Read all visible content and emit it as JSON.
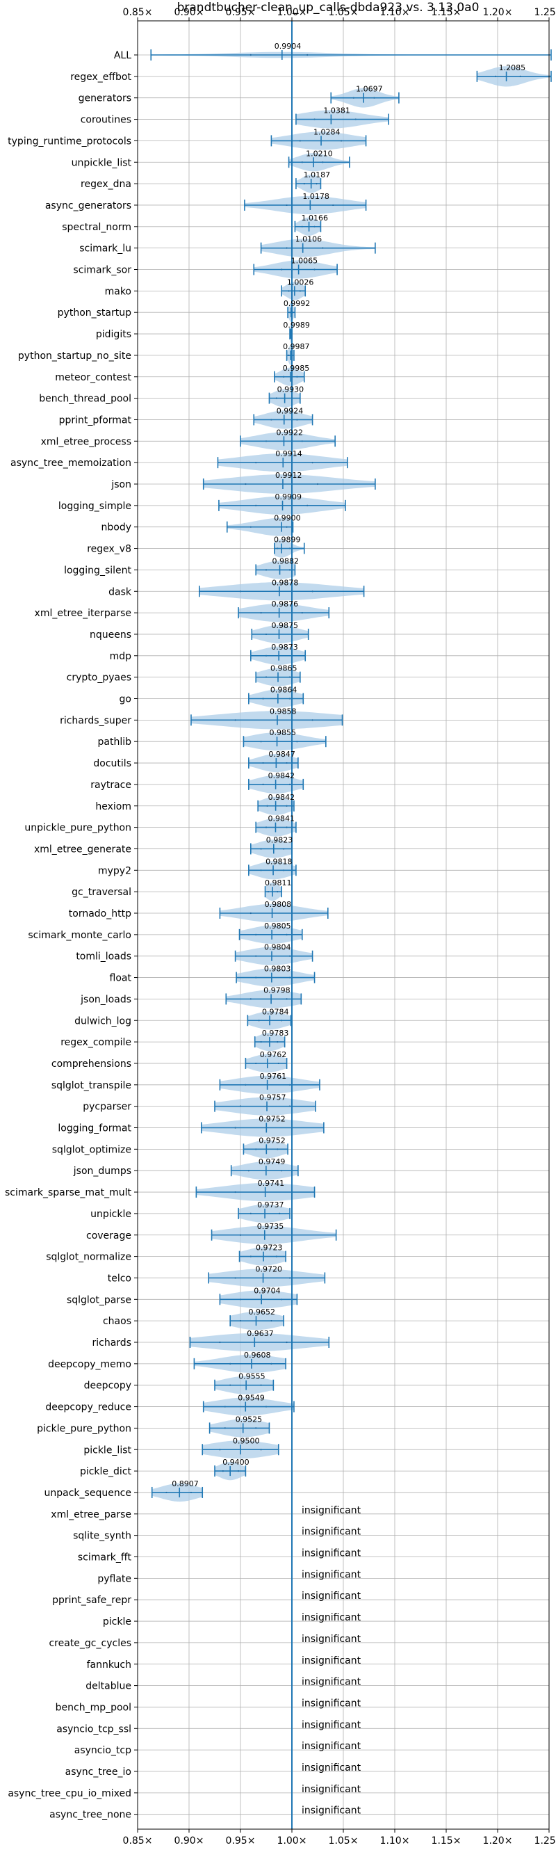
{
  "chart_data": {
    "type": "violin",
    "title": "brandtbucher-clean_up_calls-dbda923 vs. 3.13.0a0",
    "xlim": [
      0.85,
      1.25
    ],
    "xticks": [
      0.85,
      0.9,
      0.95,
      1.0,
      1.05,
      1.1,
      1.15,
      1.2,
      1.25
    ],
    "xtick_labels": [
      "0.85×",
      "0.90×",
      "0.95×",
      "1.00×",
      "1.05×",
      "1.10×",
      "1.15×",
      "1.20×",
      "1.25×"
    ],
    "reference_line": 1.0,
    "grid": true,
    "colors": {
      "violin": "#aecde8",
      "line": "#1f77b4",
      "grid": "#b0b0b0"
    },
    "insignificant_label": "insignificant",
    "benchmarks": [
      {
        "name": "ALL",
        "value": 0.9904,
        "label": "0.9904",
        "min": 0.863,
        "max": 1.252,
        "p25": 0.96,
        "p75": 1.015,
        "width": 0.28
      },
      {
        "name": "regex_effbot",
        "value": 1.2085,
        "label": "1.2085",
        "min": 1.18,
        "max": 1.252,
        "p25": 1.198,
        "p75": 1.222,
        "width": 0.95
      },
      {
        "name": "generators",
        "value": 1.0697,
        "label": "1.0697",
        "min": 1.038,
        "max": 1.104,
        "p25": 1.06,
        "p75": 1.08,
        "width": 0.9
      },
      {
        "name": "coroutines",
        "value": 1.0381,
        "label": "1.0381",
        "min": 1.004,
        "max": 1.094,
        "p25": 1.022,
        "p75": 1.062,
        "width": 0.85
      },
      {
        "name": "typing_runtime_protocols",
        "value": 1.0284,
        "label": "1.0284",
        "min": 0.98,
        "max": 1.072,
        "p25": 1.008,
        "p75": 1.048,
        "width": 0.85
      },
      {
        "name": "unpickle_list",
        "value": 1.021,
        "label": "1.0210",
        "min": 0.997,
        "max": 1.056,
        "p25": 1.01,
        "p75": 1.03,
        "width": 0.85
      },
      {
        "name": "regex_dna",
        "value": 1.0187,
        "label": "1.0187",
        "min": 1.004,
        "max": 1.028,
        "p25": 1.012,
        "p75": 1.024,
        "width": 0.85
      },
      {
        "name": "async_generators",
        "value": 1.0178,
        "label": "1.0178",
        "min": 0.954,
        "max": 1.072,
        "p25": 0.995,
        "p75": 1.04,
        "width": 0.85
      },
      {
        "name": "spectral_norm",
        "value": 1.0166,
        "label": "1.0166",
        "min": 1.003,
        "max": 1.028,
        "p25": 1.01,
        "p75": 1.022,
        "width": 0.85
      },
      {
        "name": "scimark_lu",
        "value": 1.0106,
        "label": "1.0106",
        "min": 0.97,
        "max": 1.081,
        "p25": 0.995,
        "p75": 1.03,
        "width": 0.85
      },
      {
        "name": "scimark_sor",
        "value": 1.0065,
        "label": "1.0065",
        "min": 0.963,
        "max": 1.044,
        "p25": 0.99,
        "p75": 1.022,
        "width": 0.85
      },
      {
        "name": "mako",
        "value": 1.0026,
        "label": "1.0026",
        "min": 0.99,
        "max": 1.013,
        "p25": 0.997,
        "p75": 1.008,
        "width": 0.85
      },
      {
        "name": "python_startup",
        "value": 0.9992,
        "label": "0.9992",
        "min": 0.996,
        "max": 1.003,
        "p25": 0.998,
        "p75": 1.001,
        "width": 0.9
      },
      {
        "name": "pidigits",
        "value": 0.9989,
        "label": "0.9989",
        "min": 0.998,
        "max": 1.0,
        "p25": 0.9985,
        "p75": 0.9995,
        "width": 0.9
      },
      {
        "name": "python_startup_no_site",
        "value": 0.9987,
        "label": "0.9987",
        "min": 0.995,
        "max": 1.002,
        "p25": 0.997,
        "p75": 1.0,
        "width": 0.9
      },
      {
        "name": "meteor_contest",
        "value": 0.9985,
        "label": "0.9985",
        "min": 0.983,
        "max": 1.012,
        "p25": 0.992,
        "p75": 1.005,
        "width": 0.85
      },
      {
        "name": "bench_thread_pool",
        "value": 0.993,
        "label": "0.9930",
        "min": 0.978,
        "max": 1.008,
        "p25": 0.985,
        "p75": 1.0,
        "width": 0.85
      },
      {
        "name": "pprint_pformat",
        "value": 0.9924,
        "label": "0.9924",
        "min": 0.963,
        "max": 1.02,
        "p25": 0.98,
        "p75": 1.005,
        "width": 0.85
      },
      {
        "name": "xml_etree_process",
        "value": 0.9922,
        "label": "0.9922",
        "min": 0.95,
        "max": 1.042,
        "p25": 0.975,
        "p75": 1.01,
        "width": 0.85
      },
      {
        "name": "async_tree_memoization",
        "value": 0.9914,
        "label": "0.9914",
        "min": 0.928,
        "max": 1.054,
        "p25": 0.965,
        "p75": 1.02,
        "width": 0.85
      },
      {
        "name": "json",
        "value": 0.9912,
        "label": "0.9912",
        "min": 0.914,
        "max": 1.081,
        "p25": 0.955,
        "p75": 1.025,
        "width": 0.9
      },
      {
        "name": "logging_simple",
        "value": 0.9909,
        "label": "0.9909",
        "min": 0.929,
        "max": 1.052,
        "p25": 0.965,
        "p75": 1.015,
        "width": 0.85
      },
      {
        "name": "nbody",
        "value": 0.99,
        "label": "0.9900",
        "min": 0.937,
        "max": 1.001,
        "p25": 0.96,
        "p75": 0.995,
        "width": 0.85
      },
      {
        "name": "regex_v8",
        "value": 0.9899,
        "label": "0.9899",
        "min": 0.983,
        "max": 1.012,
        "p25": 0.986,
        "p75": 0.998,
        "width": 0.85
      },
      {
        "name": "logging_silent",
        "value": 0.9882,
        "label": "0.9882",
        "min": 0.965,
        "max": 1.003,
        "p25": 0.975,
        "p75": 0.998,
        "width": 0.85
      },
      {
        "name": "dask",
        "value": 0.9878,
        "label": "0.9878",
        "min": 0.91,
        "max": 1.07,
        "p25": 0.95,
        "p75": 1.02,
        "width": 0.85
      },
      {
        "name": "xml_etree_iterparse",
        "value": 0.9876,
        "label": "0.9876",
        "min": 0.948,
        "max": 1.036,
        "p25": 0.97,
        "p75": 1.01,
        "width": 0.85
      },
      {
        "name": "nqueens",
        "value": 0.9875,
        "label": "0.9875",
        "min": 0.961,
        "max": 1.016,
        "p25": 0.975,
        "p75": 1.0,
        "width": 0.85
      },
      {
        "name": "mdp",
        "value": 0.9873,
        "label": "0.9873",
        "min": 0.96,
        "max": 1.013,
        "p25": 0.975,
        "p75": 1.0,
        "width": 0.85
      },
      {
        "name": "crypto_pyaes",
        "value": 0.9865,
        "label": "0.9865",
        "min": 0.965,
        "max": 1.008,
        "p25": 0.975,
        "p75": 0.998,
        "width": 0.85
      },
      {
        "name": "go",
        "value": 0.9864,
        "label": "0.9864",
        "min": 0.958,
        "max": 1.011,
        "p25": 0.972,
        "p75": 0.998,
        "width": 0.85
      },
      {
        "name": "richards_super",
        "value": 0.9858,
        "label": "0.9858",
        "min": 0.902,
        "max": 1.049,
        "p25": 0.945,
        "p75": 1.02,
        "width": 0.85
      },
      {
        "name": "pathlib",
        "value": 0.9855,
        "label": "0.9855",
        "min": 0.953,
        "max": 1.033,
        "p25": 0.97,
        "p75": 1.005,
        "width": 0.85
      },
      {
        "name": "docutils",
        "value": 0.9847,
        "label": "0.9847",
        "min": 0.958,
        "max": 1.006,
        "p25": 0.972,
        "p75": 0.995,
        "width": 0.85
      },
      {
        "name": "raytrace",
        "value": 0.9842,
        "label": "0.9842",
        "min": 0.958,
        "max": 1.011,
        "p25": 0.972,
        "p75": 0.998,
        "width": 0.85
      },
      {
        "name": "hexiom",
        "value": 0.9842,
        "label": "0.9842",
        "min": 0.967,
        "max": 1.002,
        "p25": 0.976,
        "p75": 0.995,
        "width": 0.85
      },
      {
        "name": "unpickle_pure_python",
        "value": 0.9841,
        "label": "0.9841",
        "min": 0.965,
        "max": 1.004,
        "p25": 0.975,
        "p75": 0.995,
        "width": 0.85
      },
      {
        "name": "xml_etree_generate",
        "value": 0.9823,
        "label": "0.9823",
        "min": 0.96,
        "max": 1.0,
        "p25": 0.97,
        "p75": 0.992,
        "width": 0.85
      },
      {
        "name": "mypy2",
        "value": 0.9818,
        "label": "0.9818",
        "min": 0.958,
        "max": 1.004,
        "p25": 0.97,
        "p75": 0.992,
        "width": 0.85
      },
      {
        "name": "gc_traversal",
        "value": 0.9811,
        "label": "0.9811",
        "min": 0.974,
        "max": 0.99,
        "p25": 0.977,
        "p75": 0.986,
        "width": 0.85
      },
      {
        "name": "tornado_http",
        "value": 0.9808,
        "label": "0.9808",
        "min": 0.93,
        "max": 1.035,
        "p25": 0.96,
        "p75": 1.0,
        "width": 0.85
      },
      {
        "name": "scimark_monte_carlo",
        "value": 0.9805,
        "label": "0.9805",
        "min": 0.949,
        "max": 1.01,
        "p25": 0.965,
        "p75": 0.995,
        "width": 0.85
      },
      {
        "name": "tomli_loads",
        "value": 0.9804,
        "label": "0.9804",
        "min": 0.945,
        "max": 1.02,
        "p25": 0.965,
        "p75": 0.998,
        "width": 0.85
      },
      {
        "name": "float",
        "value": 0.9803,
        "label": "0.9803",
        "min": 0.946,
        "max": 1.022,
        "p25": 0.965,
        "p75": 0.998,
        "width": 0.85
      },
      {
        "name": "json_loads",
        "value": 0.9798,
        "label": "0.9798",
        "min": 0.936,
        "max": 1.009,
        "p25": 0.96,
        "p75": 0.995,
        "width": 0.85
      },
      {
        "name": "dulwich_log",
        "value": 0.9784,
        "label": "0.9784",
        "min": 0.957,
        "max": 0.999,
        "p25": 0.968,
        "p75": 0.99,
        "width": 0.85
      },
      {
        "name": "regex_compile",
        "value": 0.9783,
        "label": "0.9783",
        "min": 0.964,
        "max": 0.993,
        "p25": 0.97,
        "p75": 0.986,
        "width": 0.85
      },
      {
        "name": "comprehensions",
        "value": 0.9762,
        "label": "0.9762",
        "min": 0.955,
        "max": 0.995,
        "p25": 0.965,
        "p75": 0.987,
        "width": 0.85
      },
      {
        "name": "sqlglot_transpile",
        "value": 0.9761,
        "label": "0.9761",
        "min": 0.93,
        "max": 1.027,
        "p25": 0.955,
        "p75": 0.998,
        "width": 0.85
      },
      {
        "name": "pycparser",
        "value": 0.9757,
        "label": "0.9757",
        "min": 0.925,
        "max": 1.023,
        "p25": 0.95,
        "p75": 0.998,
        "width": 0.85
      },
      {
        "name": "logging_format",
        "value": 0.9752,
        "label": "0.9752",
        "min": 0.912,
        "max": 1.031,
        "p25": 0.945,
        "p75": 1.0,
        "width": 0.85
      },
      {
        "name": "sqlglot_optimize",
        "value": 0.9752,
        "label": "0.9752",
        "min": 0.953,
        "max": 0.996,
        "p25": 0.965,
        "p75": 0.986,
        "width": 0.85
      },
      {
        "name": "json_dumps",
        "value": 0.9749,
        "label": "0.9749",
        "min": 0.941,
        "max": 1.006,
        "p25": 0.958,
        "p75": 0.99,
        "width": 0.85
      },
      {
        "name": "scimark_sparse_mat_mult",
        "value": 0.9741,
        "label": "0.9741",
        "min": 0.907,
        "max": 1.022,
        "p25": 0.945,
        "p75": 1.0,
        "width": 0.85
      },
      {
        "name": "unpickle",
        "value": 0.9737,
        "label": "0.9737",
        "min": 0.948,
        "max": 0.998,
        "p25": 0.96,
        "p75": 0.988,
        "width": 0.85
      },
      {
        "name": "coverage",
        "value": 0.9735,
        "label": "0.9735",
        "min": 0.922,
        "max": 1.043,
        "p25": 0.95,
        "p75": 1.0,
        "width": 0.85
      },
      {
        "name": "sqlglot_normalize",
        "value": 0.9723,
        "label": "0.9723",
        "min": 0.949,
        "max": 0.994,
        "p25": 0.96,
        "p75": 0.985,
        "width": 0.85
      },
      {
        "name": "telco",
        "value": 0.972,
        "label": "0.9720",
        "min": 0.919,
        "max": 1.032,
        "p25": 0.945,
        "p75": 0.998,
        "width": 0.85
      },
      {
        "name": "sqlglot_parse",
        "value": 0.9704,
        "label": "0.9704",
        "min": 0.93,
        "max": 1.005,
        "p25": 0.95,
        "p75": 0.99,
        "width": 0.85
      },
      {
        "name": "chaos",
        "value": 0.9652,
        "label": "0.9652",
        "min": 0.94,
        "max": 0.992,
        "p25": 0.95,
        "p75": 0.98,
        "width": 0.85
      },
      {
        "name": "richards",
        "value": 0.9637,
        "label": "0.9637",
        "min": 0.901,
        "max": 1.036,
        "p25": 0.93,
        "p75": 0.995,
        "width": 0.85
      },
      {
        "name": "deepcopy_memo",
        "value": 0.9608,
        "label": "0.9608",
        "min": 0.905,
        "max": 0.994,
        "p25": 0.94,
        "p75": 0.98,
        "width": 0.85
      },
      {
        "name": "deepcopy",
        "value": 0.9555,
        "label": "0.9555",
        "min": 0.925,
        "max": 0.982,
        "p25": 0.94,
        "p75": 0.97,
        "width": 0.85
      },
      {
        "name": "deepcopy_reduce",
        "value": 0.9549,
        "label": "0.9549",
        "min": 0.914,
        "max": 1.002,
        "p25": 0.935,
        "p75": 0.975,
        "width": 0.85
      },
      {
        "name": "pickle_pure_python",
        "value": 0.9525,
        "label": "0.9525",
        "min": 0.92,
        "max": 0.978,
        "p25": 0.935,
        "p75": 0.965,
        "width": 0.85
      },
      {
        "name": "pickle_list",
        "value": 0.95,
        "label": "0.9500",
        "min": 0.913,
        "max": 0.987,
        "p25": 0.93,
        "p75": 0.97,
        "width": 0.85
      },
      {
        "name": "pickle_dict",
        "value": 0.94,
        "label": "0.9400",
        "min": 0.925,
        "max": 0.955,
        "p25": 0.933,
        "p75": 0.948,
        "width": 0.85
      },
      {
        "name": "unpack_sequence",
        "value": 0.8907,
        "label": "0.8907",
        "min": 0.864,
        "max": 0.913,
        "p25": 0.878,
        "p75": 0.902,
        "width": 0.85
      },
      {
        "name": "xml_etree_parse",
        "insignificant": true
      },
      {
        "name": "sqlite_synth",
        "insignificant": true
      },
      {
        "name": "scimark_fft",
        "insignificant": true
      },
      {
        "name": "pyflate",
        "insignificant": true
      },
      {
        "name": "pprint_safe_repr",
        "insignificant": true
      },
      {
        "name": "pickle",
        "insignificant": true
      },
      {
        "name": "create_gc_cycles",
        "insignificant": true
      },
      {
        "name": "fannkuch",
        "insignificant": true
      },
      {
        "name": "deltablue",
        "insignificant": true
      },
      {
        "name": "bench_mp_pool",
        "insignificant": true
      },
      {
        "name": "asyncio_tcp_ssl",
        "insignificant": true
      },
      {
        "name": "asyncio_tcp",
        "insignificant": true
      },
      {
        "name": "async_tree_io",
        "insignificant": true
      },
      {
        "name": "async_tree_cpu_io_mixed",
        "insignificant": true
      },
      {
        "name": "async_tree_none",
        "insignificant": true
      }
    ]
  }
}
